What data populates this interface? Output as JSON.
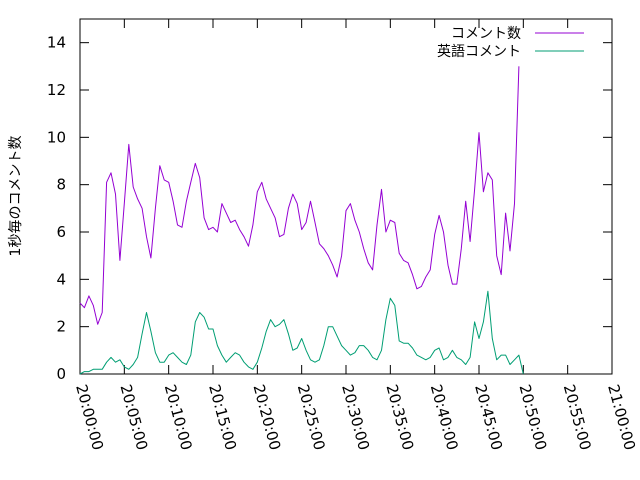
{
  "chart_data": {
    "type": "line",
    "title": "",
    "xlabel": "",
    "ylabel": "1秒毎のコメント数",
    "x_ticks": [
      "20:00:00",
      "20:05:00",
      "20:10:00",
      "20:15:00",
      "20:20:00",
      "20:25:00",
      "20:30:00",
      "20:35:00",
      "20:40:00",
      "20:45:00",
      "20:50:00",
      "20:55:00",
      "21:00:00"
    ],
    "xlim_minutes": [
      0,
      60
    ],
    "y_ticks": [
      0,
      2,
      4,
      6,
      8,
      10,
      12,
      14
    ],
    "ylim": [
      0,
      15
    ],
    "sample_interval_seconds": 30,
    "grid": false,
    "legend": "top-right",
    "series": [
      {
        "name": "コメント数",
        "color": "#9400d3",
        "values": [
          3.0,
          2.8,
          3.3,
          2.9,
          2.1,
          2.6,
          8.1,
          8.5,
          7.6,
          4.8,
          7.2,
          9.7,
          7.9,
          7.4,
          7.0,
          5.8,
          4.9,
          7.0,
          8.8,
          8.2,
          8.1,
          7.3,
          6.3,
          6.2,
          7.3,
          8.1,
          8.9,
          8.3,
          6.6,
          6.1,
          6.2,
          6.0,
          7.2,
          6.8,
          6.4,
          6.5,
          6.1,
          5.8,
          5.4,
          6.3,
          7.7,
          8.1,
          7.4,
          7.0,
          6.6,
          5.8,
          5.9,
          7.0,
          7.6,
          7.2,
          6.1,
          6.4,
          7.3,
          6.4,
          5.5,
          5.3,
          5.0,
          4.6,
          4.1,
          5.0,
          6.9,
          7.2,
          6.5,
          6.0,
          5.3,
          4.7,
          4.4,
          6.3,
          7.8,
          6.0,
          6.5,
          6.4,
          5.1,
          4.8,
          4.7,
          4.2,
          3.6,
          3.7,
          4.1,
          4.4,
          5.9,
          6.7,
          6.0,
          4.6,
          3.8,
          3.8,
          5.3,
          7.3,
          5.6,
          7.8,
          10.2,
          7.7,
          8.5,
          8.2,
          5.0,
          4.2,
          6.8,
          5.2,
          7.2,
          13.0
        ]
      },
      {
        "name": "英語コメント",
        "color": "#009e73",
        "values": [
          0.0,
          0.1,
          0.1,
          0.2,
          0.2,
          0.2,
          0.5,
          0.7,
          0.5,
          0.6,
          0.3,
          0.2,
          0.4,
          0.7,
          1.7,
          2.6,
          1.8,
          0.9,
          0.5,
          0.5,
          0.8,
          0.9,
          0.7,
          0.5,
          0.4,
          0.8,
          2.2,
          2.6,
          2.4,
          1.9,
          1.9,
          1.2,
          0.8,
          0.5,
          0.7,
          0.9,
          0.8,
          0.5,
          0.3,
          0.2,
          0.5,
          1.1,
          1.8,
          2.3,
          2.0,
          2.1,
          2.3,
          1.7,
          1.0,
          1.1,
          1.5,
          1.0,
          0.6,
          0.5,
          0.6,
          1.2,
          2.0,
          2.0,
          1.6,
          1.2,
          1.0,
          0.8,
          0.9,
          1.2,
          1.2,
          1.0,
          0.7,
          0.6,
          1.0,
          2.3,
          3.2,
          2.9,
          1.4,
          1.3,
          1.3,
          1.1,
          0.8,
          0.7,
          0.6,
          0.7,
          1.0,
          1.1,
          0.6,
          0.7,
          1.0,
          0.7,
          0.6,
          0.4,
          0.7,
          2.2,
          1.5,
          2.2,
          3.5,
          1.5,
          0.6,
          0.8,
          0.8,
          0.4,
          0.6,
          0.8,
          0.0
        ]
      }
    ]
  }
}
